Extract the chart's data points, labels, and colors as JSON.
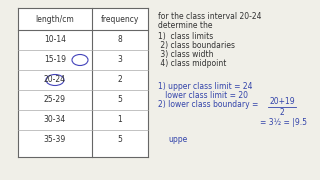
{
  "bg_color": "#f0efe8",
  "table_headers": [
    "length/cm",
    "frequency"
  ],
  "table_rows": [
    [
      "10-14",
      "8"
    ],
    [
      "15-19",
      "3"
    ],
    [
      "20-24",
      "2"
    ],
    [
      "25-29",
      "5"
    ],
    [
      "30-34",
      "1"
    ],
    [
      "35-39",
      "5"
    ]
  ],
  "tc": "#333333",
  "th": "#3344aa",
  "right_lines": [
    "for the class interval 20-24",
    "determine the",
    "1)  class limits",
    " 2) class boundaries",
    " 3) class width",
    " 4) class midpoint"
  ],
  "hand_lines": [
    "1) upper class limit = 24",
    "   lower class limit = 20",
    "2) lower class boundary ="
  ],
  "frac_num": "20+19",
  "frac_den": "2",
  "result_line": "= 3½ = |9.5",
  "uppe": "uppe"
}
